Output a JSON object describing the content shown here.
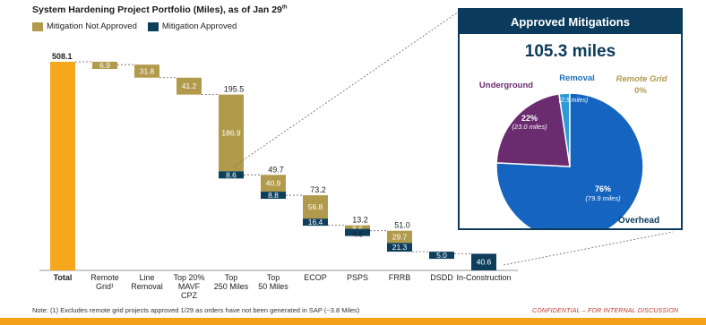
{
  "title_main": "System Hardening Project Portfolio (Miles), as of Jan 29",
  "title_sup": "th",
  "legend": [
    {
      "label": "Mitigation Not Approved",
      "color": "#B29A4C"
    },
    {
      "label": "Mitigation Approved",
      "color": "#0D3F5C"
    }
  ],
  "total_color": "#F5A81C",
  "chart_data": {
    "type": "bar",
    "subtype": "waterfall",
    "categories": [
      "Total",
      "Remote Grid¹",
      "Line Removal",
      "Top 20% MAVF CPZ",
      "Top 250 Miles",
      "Top 50 Miles",
      "ECOP",
      "PSPS",
      "FRRB",
      "DSDD",
      "In-Construction"
    ],
    "total_label": "508.1",
    "bars": [
      {
        "category": "Total",
        "segments": [
          {
            "value": 508.1,
            "kind": "total"
          }
        ]
      },
      {
        "category": "Remote Grid¹",
        "segments": [
          {
            "value": 6.9,
            "kind": "not_approved"
          }
        ]
      },
      {
        "category": "Line Removal",
        "segments": [
          {
            "value": 31.8,
            "kind": "not_approved"
          }
        ]
      },
      {
        "category": "Top 20% MAVF CPZ",
        "segments": [
          {
            "value": 41.2,
            "kind": "not_approved"
          }
        ]
      },
      {
        "category": "Top 250 Miles",
        "total_label": "195.5",
        "segments": [
          {
            "value": 186.9,
            "kind": "not_approved"
          },
          {
            "value": 8.6,
            "kind": "approved"
          }
        ]
      },
      {
        "category": "Top 50 Miles",
        "total_label": "49.7",
        "segments": [
          {
            "value": 40.9,
            "kind": "not_approved"
          },
          {
            "value": 8.8,
            "kind": "approved"
          }
        ]
      },
      {
        "category": "ECOP",
        "total_label": "73.2",
        "segments": [
          {
            "value": 56.8,
            "kind": "not_approved"
          },
          {
            "value": 16.4,
            "kind": "approved"
          }
        ]
      },
      {
        "category": "PSPS",
        "total_label": "13.2",
        "segments": [
          {
            "value": 8.6,
            "kind": "not_approved"
          },
          {
            "value": 4.6,
            "kind": "approved"
          }
        ]
      },
      {
        "category": "FRRB",
        "total_label": "51.0",
        "segments": [
          {
            "value": 29.7,
            "kind": "not_approved"
          },
          {
            "value": 21.3,
            "kind": "approved"
          }
        ]
      },
      {
        "category": "DSDD",
        "segments": [
          {
            "value": 5.0,
            "kind": "approved"
          }
        ]
      },
      {
        "category": "In-Construction",
        "segments": [
          {
            "value": 40.6,
            "kind": "approved"
          }
        ]
      }
    ],
    "pie": {
      "title": "Approved Mitigations",
      "total_label": "105.3 miles",
      "slices": [
        {
          "name": "Overhead",
          "pct_label": "76%",
          "miles_label": "(79.9 miles)",
          "value": 79.9,
          "color": "#1565C0"
        },
        {
          "name": "Underground",
          "pct_label": "22%",
          "miles_label": "(23.0 miles)",
          "value": 23.0,
          "color": "#6A2C6F"
        },
        {
          "name": "Removal",
          "pct_label": "2%",
          "miles_label": "(2.5 miles)",
          "value": 2.5,
          "color": "#2E9BD6"
        },
        {
          "name": "Remote Grid",
          "pct_label": "0%",
          "miles_label": "",
          "value": 0.0,
          "color": "#B29A4C"
        }
      ]
    }
  },
  "note": "Note: (1) Excludes remote grid projects approved 1/29 as orders have not been generated in SAP (~3.8 Miles)",
  "confidential": "CONFIDENTIAL – FOR INTERNAL DISCUSSION"
}
